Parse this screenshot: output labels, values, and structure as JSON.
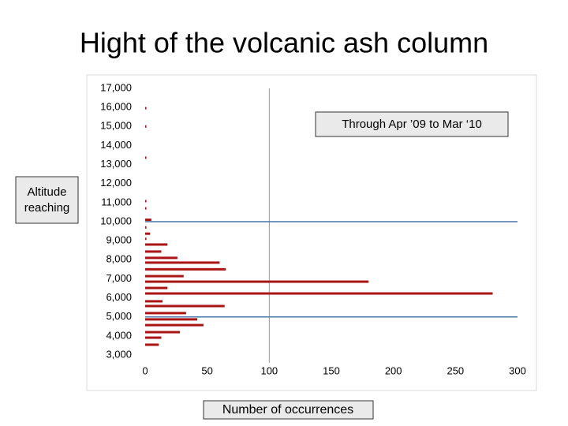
{
  "chart_data": {
    "type": "hbar",
    "title": "Hight of the volcanic ash column",
    "annotation": "Through Apr ’09 to Mar ‘10",
    "ylabel": "Altitude reaching",
    "xlabel": "Number of occurrences",
    "color": "#aa1414",
    "altitudes": [
      15960,
      15000,
      13360,
      11080,
      10700,
      10100,
      9700,
      9370,
      9100,
      8800,
      8430,
      8100,
      7850,
      7500,
      7140,
      6850,
      6520,
      6230,
      5820,
      5570,
      5200,
      4870,
      4570,
      4200,
      3910,
      3540
    ],
    "values": [
      1,
      1,
      1,
      1,
      1,
      5,
      1,
      4,
      1,
      18,
      13,
      26,
      60,
      65,
      31,
      180,
      18,
      280,
      14,
      64,
      33,
      42,
      47,
      28,
      13,
      11
    ],
    "xlim": [
      0,
      300
    ],
    "xticks": [
      0,
      50,
      100,
      150,
      200,
      250,
      300
    ],
    "ylim": [
      3000,
      17000
    ],
    "yticks": [
      {
        "value": 17000,
        "label": "17,000"
      },
      {
        "value": 16000,
        "label": "16,000"
      },
      {
        "value": 15000,
        "label": "15,000"
      },
      {
        "value": 14000,
        "label": "14,000"
      },
      {
        "value": 13000,
        "label": "13,000"
      },
      {
        "value": 12000,
        "label": "12,000"
      },
      {
        "value": 11000,
        "label": "11,000"
      },
      {
        "value": 10000,
        "label": "10,000"
      },
      {
        "value": 9000,
        "label": "9,000"
      },
      {
        "value": 8000,
        "label": "8,000"
      },
      {
        "value": 7000,
        "label": "7,000"
      },
      {
        "value": 6000,
        "label": "6,000"
      },
      {
        "value": 5000,
        "label": "5,000"
      },
      {
        "value": 4000,
        "label": "4,000"
      },
      {
        "value": 3000,
        "label": "3,000"
      }
    ],
    "hlines": [
      10000,
      5000
    ],
    "hline_color": "#4a74a8",
    "vlines": [
      100
    ],
    "vline_color": "#8a9ab0"
  }
}
